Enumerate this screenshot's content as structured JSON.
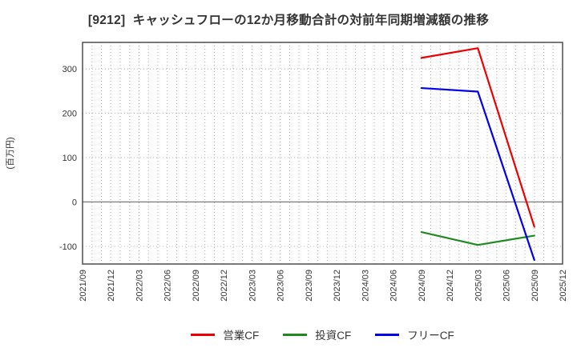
{
  "chart_data": {
    "type": "line",
    "title": "[9212]  キャッシュフローの12か月移動合計の対前年同期増減額の推移",
    "ylabel": "(百万円)",
    "xlabel": "",
    "x_ticklabels": [
      "2021/09",
      "2021/12",
      "2022/03",
      "2022/06",
      "2022/09",
      "2022/12",
      "2023/03",
      "2023/06",
      "2023/09",
      "2023/12",
      "2024/03",
      "2024/06",
      "2024/09",
      "2024/12",
      "2025/03",
      "2025/06",
      "2025/09",
      "2025/12"
    ],
    "x_ticklabel_rotation": 90,
    "x_minor_grid": "monthly",
    "ylim": [
      -140,
      360
    ],
    "yticks": [
      -100,
      0,
      100,
      200,
      300
    ],
    "grid": true,
    "zero_line": true,
    "legend_position": "bottom",
    "series": [
      {
        "key": "operating-cf",
        "name": "営業CF",
        "color": "#ee0000",
        "x": [
          "2024/09",
          "2025/03",
          "2025/09"
        ],
        "values": [
          325,
          347,
          -56
        ]
      },
      {
        "key": "investing-cf",
        "name": "投資CF",
        "color": "#1e8b1e",
        "x": [
          "2024/09",
          "2025/03",
          "2025/09"
        ],
        "values": [
          -68,
          -97,
          -76
        ]
      },
      {
        "key": "free-cf",
        "name": "フリーCF",
        "color": "#0000ee",
        "x": [
          "2024/09",
          "2025/03",
          "2025/09"
        ],
        "values": [
          257,
          249,
          -131
        ]
      }
    ],
    "colors": {
      "background": "#ffffff",
      "grid": "#b3b3b3",
      "zero_line": "#808080",
      "border": "#4d4d4d",
      "text": "#333333"
    }
  }
}
